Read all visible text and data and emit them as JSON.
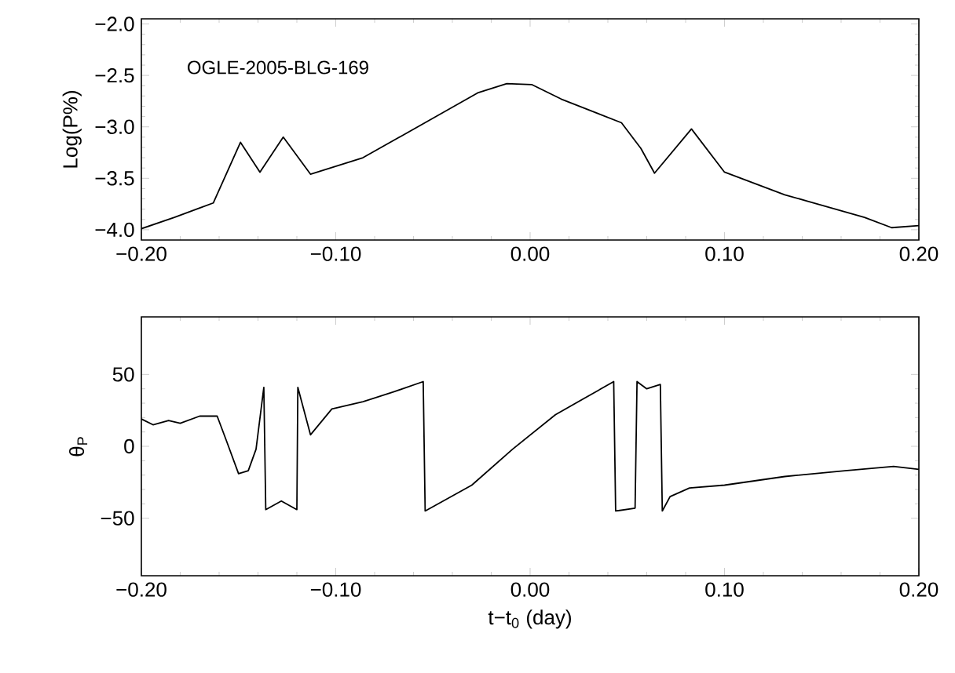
{
  "chart_data": [
    {
      "type": "line",
      "ylabel": "Log(P%)",
      "annotations": [
        "OGLE-2005-BLG-169"
      ],
      "color": "#000000",
      "x": [
        -0.2,
        -0.183,
        -0.163,
        -0.149,
        -0.139,
        -0.127,
        -0.113,
        -0.086,
        -0.055,
        -0.027,
        -0.012,
        0.001,
        0.016,
        0.047,
        0.057,
        0.064,
        0.083,
        0.1,
        0.131,
        0.172,
        0.186,
        0.2
      ],
      "values": [
        -3.99,
        -3.88,
        -3.74,
        -3.15,
        -3.44,
        -3.1,
        -3.46,
        -3.3,
        -2.97,
        -2.67,
        -2.58,
        -2.59,
        -2.73,
        -2.96,
        -3.21,
        -3.45,
        -3.02,
        -3.44,
        -3.66,
        -3.88,
        -3.98,
        -3.96
      ],
      "xlim": [
        -0.2,
        0.2
      ],
      "ylim": [
        -4.1,
        -1.95
      ],
      "xticks": [
        {
          "value": -0.2,
          "label": "−0.20"
        },
        {
          "value": -0.1,
          "label": "−0.10"
        },
        {
          "value": 0,
          "label": "0.00"
        },
        {
          "value": 0.1,
          "label": "0.10"
        },
        {
          "value": 0.2,
          "label": "0.20"
        }
      ],
      "yticks": [
        {
          "value": -4.0,
          "label": "−4.0"
        },
        {
          "value": -3.5,
          "label": "−3.5"
        },
        {
          "value": -3.0,
          "label": "−3.0"
        },
        {
          "value": -2.5,
          "label": "−2.5"
        },
        {
          "value": -2.0,
          "label": "−2.0"
        }
      ],
      "grid": false
    },
    {
      "type": "line",
      "ylabel": "θ$_{P}$",
      "xlabel": "t−t$_{0}$ (day)",
      "color": "#000000",
      "x": [
        -0.2,
        -0.194,
        -0.186,
        -0.18,
        -0.17,
        -0.161,
        -0.156,
        -0.15,
        -0.145,
        -0.141,
        -0.137,
        -0.136,
        -0.128,
        -0.12,
        -0.1195,
        -0.113,
        -0.102,
        -0.086,
        -0.07,
        -0.055,
        -0.054,
        -0.03,
        -0.009,
        0.013,
        0.043,
        0.044,
        0.054,
        0.055,
        0.06,
        0.067,
        0.068,
        0.072,
        0.082,
        0.1,
        0.131,
        0.162,
        0.187,
        0.2
      ],
      "values": [
        19,
        15,
        18,
        16,
        21,
        21,
        3,
        -19,
        -17,
        -2,
        41,
        -44,
        -38,
        -44,
        41,
        8,
        26,
        31,
        38,
        45,
        -45,
        -27,
        -2,
        22,
        45,
        -45,
        -43,
        45,
        40,
        43,
        -45,
        -35,
        -29,
        -27,
        -21,
        -17,
        -14,
        -16
      ],
      "xlim": [
        -0.2,
        0.2
      ],
      "ylim": [
        -90,
        90
      ],
      "xticks": [
        {
          "value": -0.2,
          "label": "−0.20"
        },
        {
          "value": -0.1,
          "label": "−0.10"
        },
        {
          "value": 0,
          "label": "0.00"
        },
        {
          "value": 0.1,
          "label": "0.10"
        },
        {
          "value": 0.2,
          "label": "0.20"
        }
      ],
      "yticks": [
        {
          "value": -50,
          "label": "−50"
        },
        0,
        50
      ],
      "grid": false
    }
  ]
}
